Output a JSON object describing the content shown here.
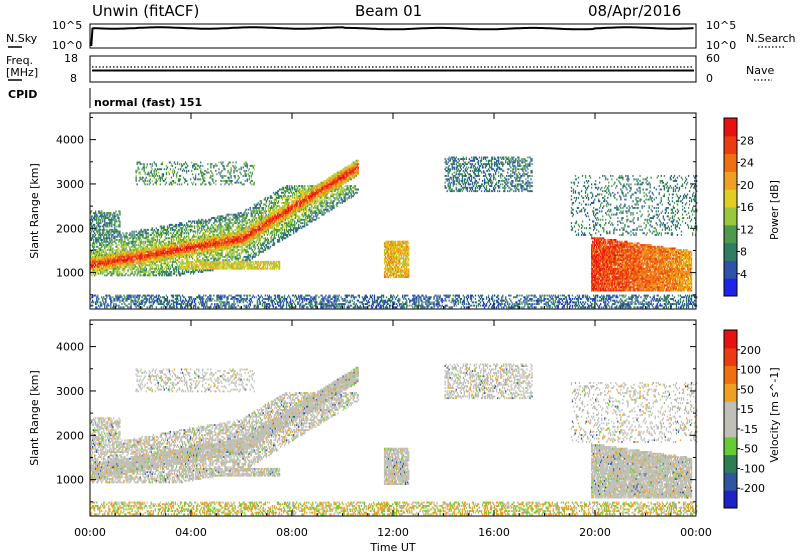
{
  "header": {
    "title": "Unwin (fitACF)",
    "beam": "Beam 01",
    "date": "08/Apr/2016"
  },
  "panels": {
    "nsky_label": "N.Sky",
    "nsearch_label": "N.Search",
    "nsky_ticks": [
      "10^5",
      "10^0"
    ],
    "nsearch_ticks": [
      "10^5",
      "10^0"
    ],
    "freq_label_1": "Freq.",
    "freq_label_2": "[MHz]",
    "freq_ticks": [
      "18",
      "8"
    ],
    "nave_label": "Nave",
    "nave_ticks": [
      "60",
      "0"
    ],
    "cpid_label": "CPID",
    "cpid_text": "normal (fast) 151"
  },
  "colors": {
    "power_scale": [
      "#1f22e8",
      "#2e52a8",
      "#2f7e63",
      "#4d9a4d",
      "#99c93a",
      "#e0cf20",
      "#f0a020",
      "#f07010",
      "#ee3a10",
      "#e81010"
    ],
    "velocity_scale": [
      "#1f22c8",
      "#2f55a0",
      "#2e7d55",
      "#66cc33",
      "#c0c0b8",
      "#c0c0b8",
      "#f0a020",
      "#f07010",
      "#ee3a10",
      "#e81010"
    ]
  },
  "chart_data": [
    {
      "type": "heatmap",
      "quantity": "Power",
      "ylabel": "Slant Range [km]",
      "colorbar_label": "Power [dB]",
      "colorbar_ticks": [
        "28",
        "24",
        "20",
        "16",
        "12",
        "8",
        "4"
      ],
      "ylim": [
        180,
        4600
      ],
      "yticks": [
        1000,
        2000,
        3000,
        4000
      ],
      "xlim": [
        0,
        24
      ],
      "echo_bands": [
        {
          "t0": 0.0,
          "t1": 10.6,
          "r0": 1000,
          "r1": 2900,
          "peak_db": 30,
          "description": "main F-region band"
        },
        {
          "t0": 11.6,
          "t1": 12.6,
          "r0": 850,
          "r1": 1700,
          "peak_db": 20
        },
        {
          "t0": 14.0,
          "t1": 17.5,
          "r0": 2800,
          "r1": 3600,
          "peak_db": 10
        },
        {
          "t0": 19.8,
          "t1": 23.8,
          "r0": 550,
          "r1": 1800,
          "peak_db": 30
        },
        {
          "t0": 0.0,
          "t1": 24.0,
          "r0": 200,
          "r1": 450,
          "peak_db": 8,
          "description": "near-range ground echoes"
        }
      ]
    },
    {
      "type": "heatmap",
      "quantity": "Velocity",
      "ylabel": "Slant Range [km]",
      "xlabel": "Time UT",
      "colorbar_label": "Velocity [m s^-1]",
      "colorbar_ticks": [
        "200",
        "100",
        "50",
        "15",
        "-15",
        "-50",
        "-100",
        "-200"
      ],
      "ylim": [
        180,
        4600
      ],
      "yticks": [
        1000,
        2000,
        3000,
        4000
      ],
      "xlim": [
        0,
        24
      ],
      "xticks": [
        "00:00",
        "04:00",
        "08:00",
        "12:00",
        "16:00",
        "20:00",
        "00:00"
      ],
      "dominant_velocity": "-15 to 15"
    }
  ]
}
